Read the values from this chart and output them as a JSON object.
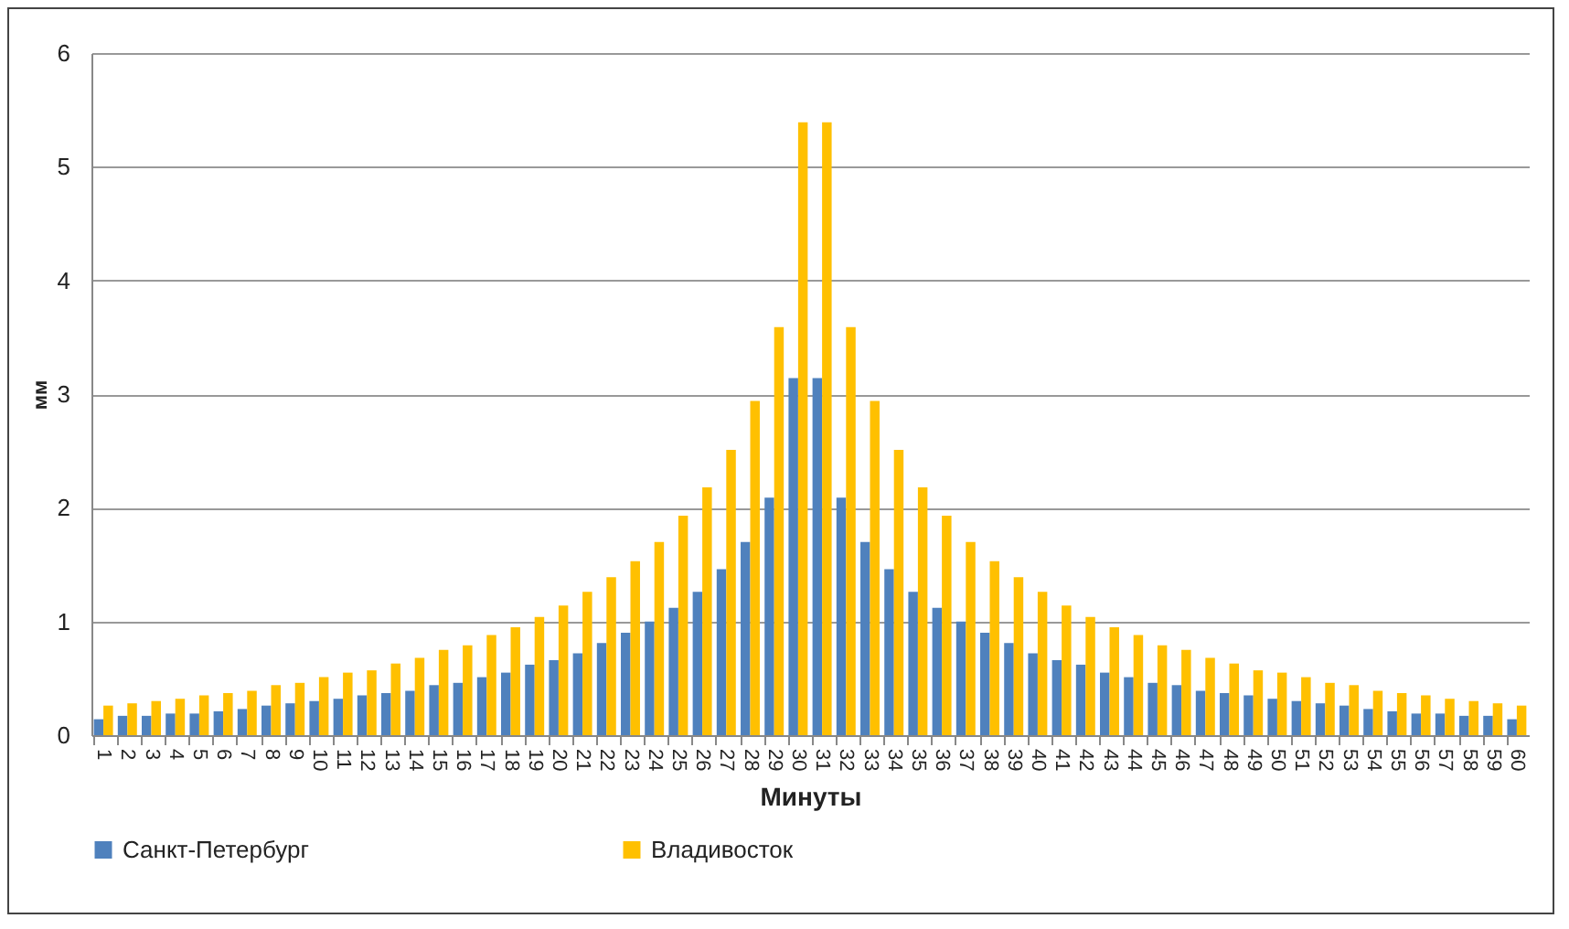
{
  "chart_data": {
    "type": "bar",
    "xlabel": "Минуты",
    "ylabel": "мм",
    "categories": [
      "1",
      "2",
      "3",
      "4",
      "5",
      "6",
      "7",
      "8",
      "9",
      "10",
      "11",
      "12",
      "13",
      "14",
      "15",
      "16",
      "17",
      "18",
      "19",
      "20",
      "21",
      "22",
      "23",
      "24",
      "25",
      "26",
      "27",
      "28",
      "29",
      "30",
      "31",
      "32",
      "33",
      "34",
      "35",
      "36",
      "37",
      "38",
      "39",
      "40",
      "41",
      "42",
      "43",
      "44",
      "45",
      "46",
      "47",
      "48",
      "49",
      "50",
      "51",
      "52",
      "53",
      "54",
      "55",
      "56",
      "57",
      "58",
      "59",
      "60"
    ],
    "series": [
      {
        "name": "Санкт-Петербург",
        "color": "#4f81bd",
        "values": [
          0.14,
          0.17,
          0.17,
          0.19,
          0.19,
          0.21,
          0.23,
          0.26,
          0.28,
          0.3,
          0.32,
          0.35,
          0.37,
          0.39,
          0.44,
          0.46,
          0.51,
          0.55,
          0.62,
          0.66,
          0.72,
          0.81,
          0.9,
          1.0,
          1.12,
          1.26,
          1.46,
          1.7,
          2.09,
          3.14,
          3.14,
          2.09,
          1.7,
          1.46,
          1.26,
          1.12,
          1.0,
          0.9,
          0.81,
          0.72,
          0.66,
          0.62,
          0.55,
          0.51,
          0.46,
          0.44,
          0.39,
          0.37,
          0.35,
          0.32,
          0.3,
          0.28,
          0.26,
          0.23,
          0.21,
          0.19,
          0.19,
          0.17,
          0.17,
          0.14
        ]
      },
      {
        "name": "Владивосток",
        "color": "#ffc000",
        "values": [
          0.26,
          0.28,
          0.3,
          0.32,
          0.35,
          0.37,
          0.39,
          0.44,
          0.46,
          0.51,
          0.55,
          0.57,
          0.63,
          0.68,
          0.75,
          0.79,
          0.88,
          0.95,
          1.04,
          1.14,
          1.26,
          1.39,
          1.53,
          1.7,
          1.93,
          2.18,
          2.51,
          2.94,
          3.59,
          5.39,
          5.39,
          3.59,
          2.94,
          2.51,
          2.18,
          1.93,
          1.7,
          1.53,
          1.39,
          1.26,
          1.14,
          1.04,
          0.95,
          0.88,
          0.79,
          0.75,
          0.68,
          0.63,
          0.57,
          0.55,
          0.51,
          0.46,
          0.44,
          0.39,
          0.37,
          0.35,
          0.32,
          0.3,
          0.28,
          0.26
        ]
      }
    ],
    "ylim": [
      0,
      6
    ],
    "yticks": [
      0,
      1,
      2,
      3,
      4,
      5,
      6
    ],
    "grid": "y",
    "legend": "bottom"
  }
}
